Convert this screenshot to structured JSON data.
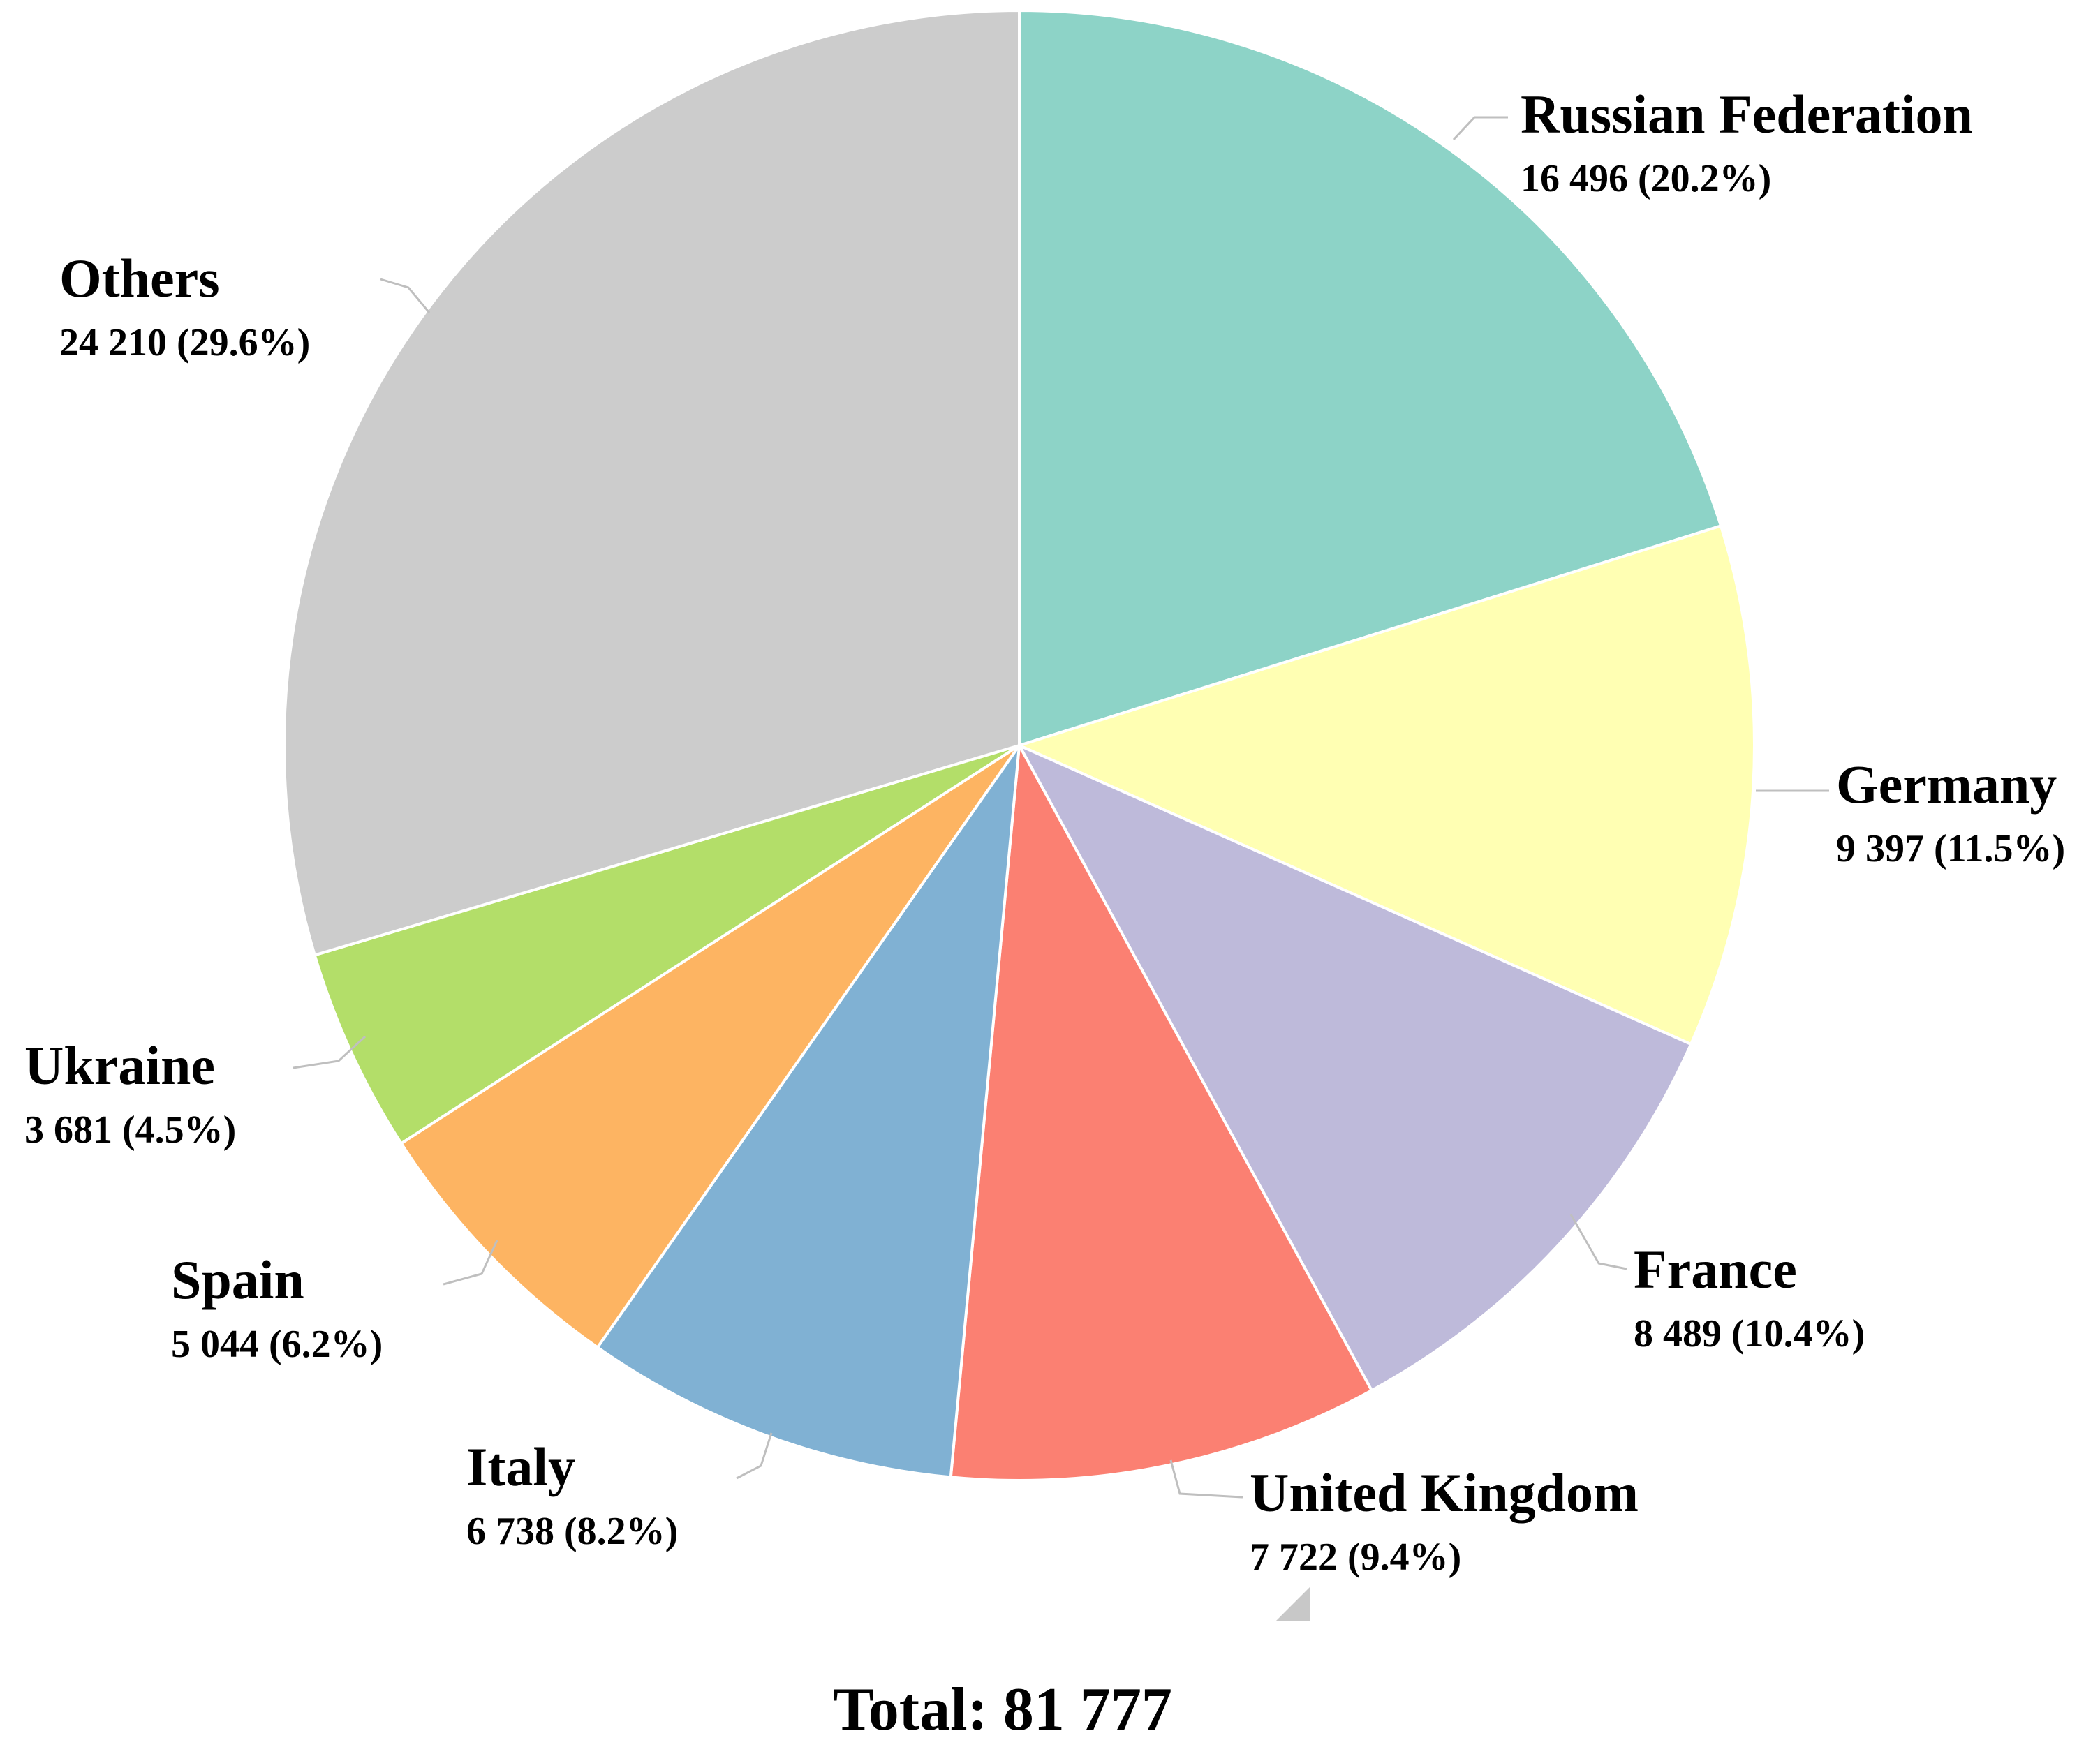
{
  "chart_data": {
    "type": "pie",
    "slices": [
      {
        "label": "Russian Federation",
        "value": 16496,
        "value_text": "16 496 (20.2%)",
        "percent": 20.2,
        "color": "#8dd3c7"
      },
      {
        "label": "Germany",
        "value": 9397,
        "value_text": "9 397 (11.5%)",
        "percent": 11.5,
        "color": "#ffffb3"
      },
      {
        "label": "France",
        "value": 8489,
        "value_text": "8 489 (10.4%)",
        "percent": 10.4,
        "color": "#bebada"
      },
      {
        "label": "United Kingdom",
        "value": 7722,
        "value_text": "7 722 (9.4%)",
        "percent": 9.4,
        "color": "#fb8072"
      },
      {
        "label": "Italy",
        "value": 6738,
        "value_text": "6 738 (8.2%)",
        "percent": 8.2,
        "color": "#80b1d3"
      },
      {
        "label": "Spain",
        "value": 5044,
        "value_text": "5 044 (6.2%)",
        "percent": 6.2,
        "color": "#fdb462"
      },
      {
        "label": "Ukraine",
        "value": 3681,
        "value_text": "3 681 (4.5%)",
        "percent": 4.5,
        "color": "#b3de69"
      },
      {
        "label": "Others",
        "value": 24210,
        "value_text": "24 210 (29.6%)",
        "percent": 29.6,
        "color": "#cccccc"
      }
    ],
    "total_text": "Total: 81 777",
    "start_angle": "12 o'clock",
    "direction": "clockwise"
  }
}
